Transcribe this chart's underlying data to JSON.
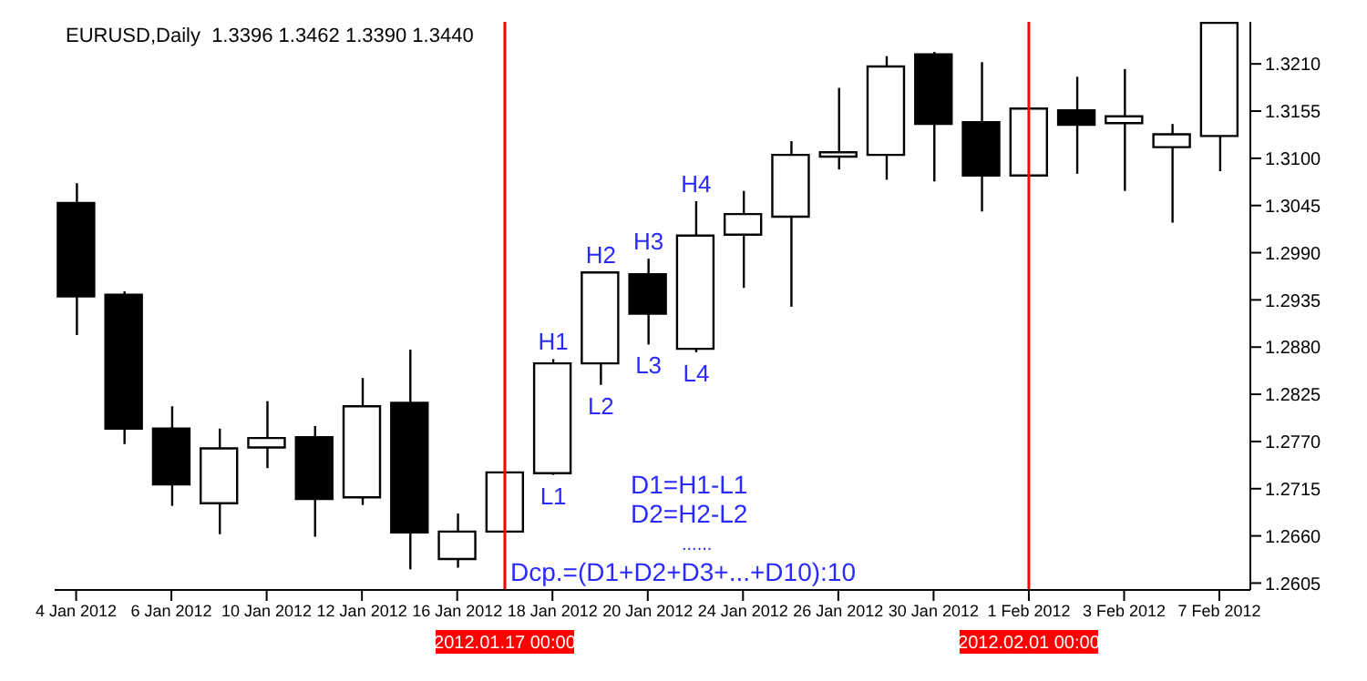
{
  "chart_data": {
    "type": "candlestick",
    "title": "EURUSD,Daily  1.3396 1.3462 1.3390 1.3440",
    "categories": [
      "4 Jan 2012",
      null,
      "6 Jan 2012",
      null,
      "10 Jan 2012",
      null,
      "12 Jan 2012",
      null,
      "16 Jan 2012",
      null,
      "18 Jan 2012",
      null,
      "20 Jan 2012",
      null,
      "24 Jan 2012",
      null,
      "26 Jan 2012",
      null,
      "30 Jan 2012",
      null,
      "1 Feb 2012",
      null,
      "3 Feb 2012",
      null,
      "7 Feb 2012"
    ],
    "ohlc": [
      [
        1.3048,
        1.3071,
        1.2894,
        1.2939
      ],
      [
        1.2941,
        1.2945,
        1.2767,
        1.2785
      ],
      [
        1.2785,
        1.2811,
        1.2695,
        1.272
      ],
      [
        1.2698,
        1.2785,
        1.2662,
        1.2762
      ],
      [
        1.2763,
        1.2817,
        1.2739,
        1.2774
      ],
      [
        1.2775,
        1.2788,
        1.2659,
        1.2703
      ],
      [
        1.2705,
        1.2844,
        1.2696,
        1.2811
      ],
      [
        1.2815,
        1.2877,
        1.2621,
        1.2664
      ],
      [
        1.2633,
        1.2686,
        1.2623,
        1.2665
      ],
      [
        1.2665,
        1.2734,
        1.2665,
        1.2734
      ],
      [
        1.2733,
        1.2866,
        1.2731,
        1.2861
      ],
      [
        1.2861,
        1.2967,
        1.2836,
        1.2967
      ],
      [
        1.2965,
        1.2983,
        1.2883,
        1.2919
      ],
      [
        1.2878,
        1.305,
        1.2874,
        1.301
      ],
      [
        1.3011,
        1.3062,
        1.2949,
        1.3035
      ],
      [
        1.3032,
        1.312,
        1.2927,
        1.3104
      ],
      [
        1.3102,
        1.3182,
        1.3087,
        1.3107
      ],
      [
        1.3104,
        1.3219,
        1.3075,
        1.3207
      ],
      [
        1.3221,
        1.3224,
        1.3073,
        1.314
      ],
      [
        1.3142,
        1.3212,
        1.3038,
        1.308
      ],
      [
        1.308,
        1.3158,
        1.308,
        1.3158
      ],
      [
        1.3156,
        1.3195,
        1.3082,
        1.3139
      ],
      [
        1.3141,
        1.3204,
        1.3062,
        1.3149
      ],
      [
        1.3113,
        1.314,
        1.3025,
        1.3128
      ],
      [
        1.3126,
        1.3258,
        1.3085,
        1.3258
      ]
    ],
    "ylim": [
      1.2597,
      1.3259
    ],
    "yticks": [
      {
        "value": 1.2605,
        "label": "1.2605"
      },
      {
        "value": 1.266,
        "label": "1.2660"
      },
      {
        "value": 1.2715,
        "label": "1.2715"
      },
      {
        "value": 1.277,
        "label": "1.2770"
      },
      {
        "value": 1.2825,
        "label": "1.2825"
      },
      {
        "value": 1.288,
        "label": "1.2880"
      },
      {
        "value": 1.2935,
        "label": "1.2935"
      },
      {
        "value": 1.299,
        "label": "1.2990"
      },
      {
        "value": 1.3045,
        "label": "1.3045"
      },
      {
        "value": 1.31,
        "label": "1.3100"
      },
      {
        "value": 1.3155,
        "label": "1.3155"
      },
      {
        "value": 1.321,
        "label": "1.3210"
      }
    ],
    "ref_lines": [
      {
        "axis": "x",
        "label": "2012.01.17 00:00",
        "color": "#ff0000"
      },
      {
        "axis": "x",
        "value": "1 Feb 2012",
        "label": "2012.02.01 00:00",
        "color": "#ff0000"
      }
    ],
    "annotations": [
      {
        "text": "H1",
        "x": "18 Jan 2012",
        "y": 1.2866
      },
      {
        "text": "L1",
        "x": "18 Jan 2012",
        "y": 1.2731
      },
      {
        "text": "H2",
        "y": 1.2967
      },
      {
        "text": "L2",
        "y": 1.2836
      },
      {
        "text": "H3",
        "x": "20 Jan 2012",
        "y": 1.2983
      },
      {
        "text": "L3",
        "x": "20 Jan 2012",
        "y": 1.2883
      },
      {
        "text": "H4",
        "y": 1.305
      },
      {
        "text": "L4",
        "y": 1.2874
      },
      "D1=H1-L1",
      "D2=H2-L2",
      "......",
      "Dcp.=(D1+D2+D3+...+D10):10"
    ]
  }
}
